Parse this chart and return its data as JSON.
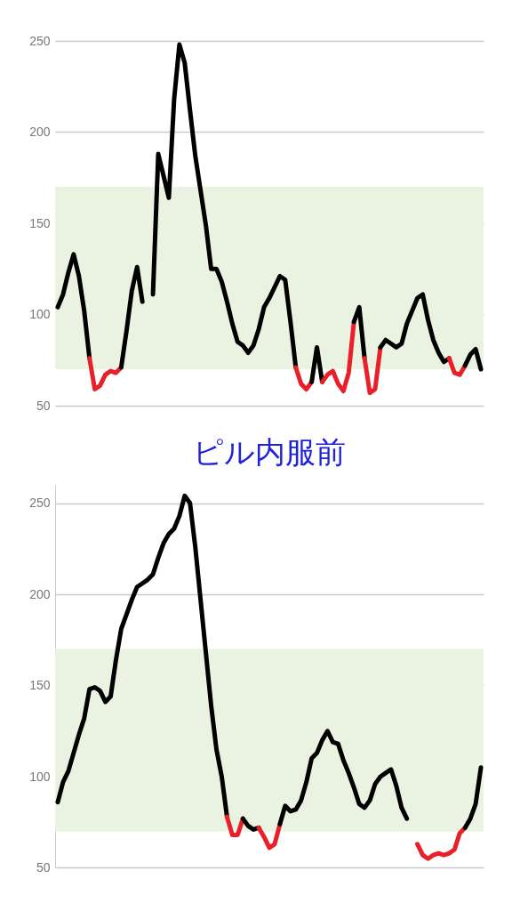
{
  "chart_data": [
    {
      "type": "line",
      "categories": [
        null,
        null,
        null,
        null,
        null,
        null,
        null,
        null,
        null,
        null,
        null,
        null,
        null,
        null,
        null,
        null,
        null,
        null,
        null,
        null,
        null,
        null,
        null,
        null,
        null,
        null,
        null,
        null,
        null,
        null,
        null,
        null,
        null,
        null,
        null,
        null,
        null,
        null,
        null,
        null,
        null,
        null,
        null,
        null,
        null,
        null,
        null,
        null,
        null,
        null,
        null,
        null,
        null,
        null,
        null,
        null,
        null,
        null,
        null,
        null,
        null,
        null,
        null,
        null,
        null,
        null,
        null,
        null,
        null,
        null,
        null,
        null,
        null,
        null,
        null,
        null,
        null,
        null,
        null,
        null,
        null
      ],
      "series": [
        {
          "color": "#000000",
          "values": [
            104,
            111,
            123,
            133,
            121,
            102,
            76,
            null,
            null,
            null,
            null,
            null,
            null,
            null,
            null,
            null,
            null,
            null,
            null,
            null,
            null,
            null,
            null,
            null,
            null,
            null,
            null,
            null,
            null,
            null,
            null,
            null,
            null,
            null,
            null,
            null,
            null,
            null,
            null,
            null,
            null,
            null,
            null,
            null,
            null,
            null,
            null,
            null,
            null,
            null,
            null,
            null,
            null,
            null,
            null,
            null,
            null,
            null,
            null,
            null,
            null,
            null,
            null,
            null,
            null,
            null,
            null,
            null,
            null,
            null,
            null,
            null,
            null,
            null,
            null,
            null,
            null,
            null,
            null,
            null,
            null
          ]
        },
        {
          "color": "#e8202a",
          "values": [
            null,
            null,
            null,
            null,
            null,
            null,
            76,
            59,
            61,
            67,
            69,
            68,
            71,
            null,
            null,
            null,
            null,
            null,
            null,
            null,
            null,
            null,
            null,
            null,
            null,
            null,
            null,
            null,
            null,
            null,
            null,
            null,
            null,
            null,
            null,
            null,
            null,
            null,
            null,
            null,
            null,
            null,
            null,
            null,
            null,
            null,
            null,
            null,
            null,
            null,
            null,
            null,
            null,
            null,
            null,
            null,
            null,
            null,
            null,
            null,
            null,
            null,
            null,
            null,
            null,
            null,
            null,
            null,
            null,
            null,
            null,
            null,
            null,
            null,
            null,
            null,
            null,
            null,
            null,
            null,
            null
          ]
        },
        {
          "color": "#000000",
          "values": [
            null,
            null,
            null,
            null,
            null,
            null,
            null,
            null,
            null,
            null,
            null,
            null,
            71,
            91,
            113,
            126,
            107,
            null,
            null,
            null,
            null,
            null,
            null,
            null,
            null,
            null,
            null,
            null,
            null,
            null,
            null,
            null,
            null,
            null,
            null,
            null,
            null,
            null,
            null,
            null,
            null,
            null,
            null,
            null,
            null,
            null,
            null,
            null,
            null,
            null,
            null,
            null,
            null,
            null,
            null,
            null,
            null,
            null,
            null,
            null,
            null,
            null,
            null,
            null,
            null,
            null,
            null,
            null,
            null,
            null,
            null,
            null,
            null,
            null,
            null,
            null,
            null,
            null,
            null,
            null,
            null
          ]
        },
        {
          "color": "#000000",
          "values": [
            null,
            null,
            null,
            null,
            null,
            null,
            null,
            null,
            null,
            null,
            null,
            null,
            null,
            null,
            null,
            null,
            null,
            null,
            111,
            188,
            176,
            164,
            218,
            248,
            238,
            212,
            187,
            168,
            149,
            125,
            125,
            118,
            107,
            95,
            85,
            83,
            79,
            83,
            92,
            104,
            109,
            115,
            121,
            119,
            96,
            71,
            null,
            null,
            null,
            null,
            null,
            null,
            null,
            null,
            null,
            null,
            null,
            null,
            null,
            null,
            null,
            null,
            null,
            null,
            null,
            null,
            null,
            null,
            null,
            null,
            null,
            null,
            null,
            null,
            null,
            null,
            null,
            null,
            null,
            null,
            null
          ]
        },
        {
          "color": "#e8202a",
          "values": [
            null,
            null,
            null,
            null,
            null,
            null,
            null,
            null,
            null,
            null,
            null,
            null,
            null,
            null,
            null,
            null,
            null,
            null,
            null,
            null,
            null,
            null,
            null,
            null,
            null,
            null,
            null,
            null,
            null,
            null,
            null,
            null,
            null,
            null,
            null,
            null,
            null,
            null,
            null,
            null,
            null,
            null,
            null,
            null,
            null,
            71,
            62,
            59,
            63,
            null,
            null,
            null,
            null,
            null,
            null,
            null,
            null,
            null,
            null,
            null,
            null,
            null,
            null,
            null,
            null,
            null,
            null,
            null,
            null,
            null,
            null,
            null,
            null,
            null,
            null,
            null,
            null,
            null,
            null,
            null,
            null
          ]
        },
        {
          "color": "#000000",
          "values": [
            null,
            null,
            null,
            null,
            null,
            null,
            null,
            null,
            null,
            null,
            null,
            null,
            null,
            null,
            null,
            null,
            null,
            null,
            null,
            null,
            null,
            null,
            null,
            null,
            null,
            null,
            null,
            null,
            null,
            null,
            null,
            null,
            null,
            null,
            null,
            null,
            null,
            null,
            null,
            null,
            null,
            null,
            null,
            null,
            null,
            null,
            null,
            null,
            63,
            82,
            63,
            null,
            null,
            null,
            null,
            null,
            null,
            null,
            null,
            null,
            null,
            null,
            null,
            null,
            null,
            null,
            null,
            null,
            null,
            null,
            null,
            null,
            null,
            null,
            null,
            null,
            null,
            null,
            null,
            null,
            null
          ]
        },
        {
          "color": "#e8202a",
          "values": [
            null,
            null,
            null,
            null,
            null,
            null,
            null,
            null,
            null,
            null,
            null,
            null,
            null,
            null,
            null,
            null,
            null,
            null,
            null,
            null,
            null,
            null,
            null,
            null,
            null,
            null,
            null,
            null,
            null,
            null,
            null,
            null,
            null,
            null,
            null,
            null,
            null,
            null,
            null,
            null,
            null,
            null,
            null,
            null,
            null,
            null,
            null,
            null,
            null,
            null,
            63,
            67,
            69,
            62,
            58,
            68,
            96,
            null,
            null,
            null,
            null,
            null,
            null,
            null,
            null,
            null,
            null,
            null,
            null,
            null,
            null,
            null,
            null,
            null,
            null,
            null,
            null,
            null,
            null,
            null,
            null
          ]
        },
        {
          "color": "#000000",
          "values": [
            null,
            null,
            null,
            null,
            null,
            null,
            null,
            null,
            null,
            null,
            null,
            null,
            null,
            null,
            null,
            null,
            null,
            null,
            null,
            null,
            null,
            null,
            null,
            null,
            null,
            null,
            null,
            null,
            null,
            null,
            null,
            null,
            null,
            null,
            null,
            null,
            null,
            null,
            null,
            null,
            null,
            null,
            null,
            null,
            null,
            null,
            null,
            null,
            null,
            null,
            null,
            null,
            null,
            null,
            null,
            null,
            96,
            104,
            76,
            null,
            null,
            null,
            null,
            null,
            null,
            null,
            null,
            null,
            null,
            null,
            null,
            null,
            null,
            null,
            null,
            null,
            null,
            null,
            null,
            null,
            null
          ]
        },
        {
          "color": "#e8202a",
          "values": [
            null,
            null,
            null,
            null,
            null,
            null,
            null,
            null,
            null,
            null,
            null,
            null,
            null,
            null,
            null,
            null,
            null,
            null,
            null,
            null,
            null,
            null,
            null,
            null,
            null,
            null,
            null,
            null,
            null,
            null,
            null,
            null,
            null,
            null,
            null,
            null,
            null,
            null,
            null,
            null,
            null,
            null,
            null,
            null,
            null,
            null,
            null,
            null,
            null,
            null,
            null,
            null,
            null,
            null,
            null,
            null,
            null,
            null,
            76,
            57,
            59,
            82,
            null,
            null,
            null,
            null,
            null,
            null,
            null,
            null,
            null,
            null,
            null,
            null,
            null,
            null,
            null,
            null,
            null,
            null,
            null
          ]
        },
        {
          "color": "#000000",
          "values": [
            null,
            null,
            null,
            null,
            null,
            null,
            null,
            null,
            null,
            null,
            null,
            null,
            null,
            null,
            null,
            null,
            null,
            null,
            null,
            null,
            null,
            null,
            null,
            null,
            null,
            null,
            null,
            null,
            null,
            null,
            null,
            null,
            null,
            null,
            null,
            null,
            null,
            null,
            null,
            null,
            null,
            null,
            null,
            null,
            null,
            null,
            null,
            null,
            null,
            null,
            null,
            null,
            null,
            null,
            null,
            null,
            null,
            null,
            null,
            null,
            null,
            82,
            86,
            84,
            82,
            84,
            95,
            102,
            109,
            111,
            97,
            86,
            79,
            74,
            76,
            null,
            null,
            null,
            null,
            null,
            null
          ]
        },
        {
          "color": "#e8202a",
          "values": [
            null,
            null,
            null,
            null,
            null,
            null,
            null,
            null,
            null,
            null,
            null,
            null,
            null,
            null,
            null,
            null,
            null,
            null,
            null,
            null,
            null,
            null,
            null,
            null,
            null,
            null,
            null,
            null,
            null,
            null,
            null,
            null,
            null,
            null,
            null,
            null,
            null,
            null,
            null,
            null,
            null,
            null,
            null,
            null,
            null,
            null,
            null,
            null,
            null,
            null,
            null,
            null,
            null,
            null,
            null,
            null,
            null,
            null,
            null,
            null,
            null,
            null,
            null,
            null,
            null,
            null,
            null,
            null,
            null,
            null,
            null,
            null,
            null,
            null,
            76,
            68,
            67,
            72,
            null,
            null,
            null
          ]
        },
        {
          "color": "#000000",
          "values": [
            null,
            null,
            null,
            null,
            null,
            null,
            null,
            null,
            null,
            null,
            null,
            null,
            null,
            null,
            null,
            null,
            null,
            null,
            null,
            null,
            null,
            null,
            null,
            null,
            null,
            null,
            null,
            null,
            null,
            null,
            null,
            null,
            null,
            null,
            null,
            null,
            null,
            null,
            null,
            null,
            null,
            null,
            null,
            null,
            null,
            null,
            null,
            null,
            null,
            null,
            null,
            null,
            null,
            null,
            null,
            null,
            null,
            null,
            null,
            null,
            null,
            null,
            null,
            null,
            null,
            null,
            null,
            null,
            null,
            null,
            null,
            null,
            null,
            null,
            null,
            null,
            null,
            72,
            78,
            81,
            70
          ]
        }
      ],
      "ylim": [
        50,
        250
      ],
      "yticks": [
        50,
        100,
        150,
        200,
        250
      ],
      "grid": "y",
      "tick_labels": "y",
      "line_style": "solid",
      "bands": [
        {
          "axis": "y",
          "from": 70,
          "to": 170,
          "color": "#eaf3e2"
        }
      ]
    },
    {
      "type": "line",
      "title": "ピル内服前",
      "categories": [
        null,
        null,
        null,
        null,
        null,
        null,
        null,
        null,
        null,
        null,
        null,
        null,
        null,
        null,
        null,
        null,
        null,
        null,
        null,
        null,
        null,
        null,
        null,
        null,
        null,
        null,
        null,
        null,
        null,
        null,
        null,
        null,
        null,
        null,
        null,
        null,
        null,
        null,
        null,
        null,
        null,
        null,
        null,
        null,
        null,
        null,
        null,
        null,
        null,
        null,
        null,
        null,
        null,
        null,
        null,
        null,
        null,
        null,
        null,
        null,
        null,
        null,
        null,
        null,
        null,
        null,
        null,
        null,
        null,
        null,
        null,
        null,
        null,
        null,
        null,
        null,
        null,
        null,
        null,
        null,
        null
      ],
      "series": [
        {
          "color": "#000000",
          "values": [
            86,
            97,
            103,
            113,
            123,
            132,
            148,
            149,
            147,
            141,
            144,
            164,
            181,
            189,
            197,
            204,
            206,
            208,
            211,
            220,
            228,
            233,
            236,
            243,
            254,
            250,
            226,
            197,
            168,
            139,
            115,
            100,
            78,
            null,
            null,
            null,
            null,
            null,
            null,
            null,
            null,
            null,
            null,
            null,
            null,
            null,
            null,
            null,
            null,
            null,
            null,
            null,
            null,
            null,
            null,
            null,
            null,
            null,
            null,
            null,
            null,
            null,
            null,
            null,
            null,
            null,
            null,
            null,
            null,
            null,
            null,
            null,
            null,
            null,
            null,
            null,
            null,
            null,
            null,
            null,
            null
          ]
        },
        {
          "color": "#e8202a",
          "values": [
            null,
            null,
            null,
            null,
            null,
            null,
            null,
            null,
            null,
            null,
            null,
            null,
            null,
            null,
            null,
            null,
            null,
            null,
            null,
            null,
            null,
            null,
            null,
            null,
            null,
            null,
            null,
            null,
            null,
            null,
            null,
            null,
            78,
            68,
            68,
            77,
            null,
            null,
            null,
            null,
            null,
            null,
            null,
            null,
            null,
            null,
            null,
            null,
            null,
            null,
            null,
            null,
            null,
            null,
            null,
            null,
            null,
            null,
            null,
            null,
            null,
            null,
            null,
            null,
            null,
            null,
            null,
            null,
            null,
            null,
            null,
            null,
            null,
            null,
            null,
            null,
            null,
            null,
            null,
            null,
            null
          ]
        },
        {
          "color": "#000000",
          "values": [
            null,
            null,
            null,
            null,
            null,
            null,
            null,
            null,
            null,
            null,
            null,
            null,
            null,
            null,
            null,
            null,
            null,
            null,
            null,
            null,
            null,
            null,
            null,
            null,
            null,
            null,
            null,
            null,
            null,
            null,
            null,
            null,
            null,
            null,
            null,
            77,
            73,
            71,
            72,
            null,
            null,
            null,
            null,
            null,
            null,
            null,
            null,
            null,
            null,
            null,
            null,
            null,
            null,
            null,
            null,
            null,
            null,
            null,
            null,
            null,
            null,
            null,
            null,
            null,
            null,
            null,
            null,
            null,
            null,
            null,
            null,
            null,
            null,
            null,
            null,
            null,
            null,
            null,
            null,
            null,
            null
          ]
        },
        {
          "color": "#e8202a",
          "values": [
            null,
            null,
            null,
            null,
            null,
            null,
            null,
            null,
            null,
            null,
            null,
            null,
            null,
            null,
            null,
            null,
            null,
            null,
            null,
            null,
            null,
            null,
            null,
            null,
            null,
            null,
            null,
            null,
            null,
            null,
            null,
            null,
            null,
            null,
            null,
            null,
            null,
            null,
            72,
            67,
            61,
            63,
            74,
            null,
            null,
            null,
            null,
            null,
            null,
            null,
            null,
            null,
            null,
            null,
            null,
            null,
            null,
            null,
            null,
            null,
            null,
            null,
            null,
            null,
            null,
            null,
            null,
            null,
            null,
            null,
            null,
            null,
            null,
            null,
            null,
            null,
            null,
            null,
            null,
            null,
            null
          ]
        },
        {
          "color": "#000000",
          "values": [
            null,
            null,
            null,
            null,
            null,
            null,
            null,
            null,
            null,
            null,
            null,
            null,
            null,
            null,
            null,
            null,
            null,
            null,
            null,
            null,
            null,
            null,
            null,
            null,
            null,
            null,
            null,
            null,
            null,
            null,
            null,
            null,
            null,
            null,
            null,
            null,
            null,
            null,
            null,
            null,
            null,
            null,
            74,
            84,
            81,
            82,
            87,
            97,
            110,
            113,
            120,
            125,
            119,
            118,
            109,
            102,
            94,
            85,
            83,
            87,
            96,
            100,
            102,
            104,
            95,
            83,
            77,
            null,
            null,
            null,
            null,
            null,
            null,
            null,
            null,
            null,
            null,
            null,
            null,
            null,
            null
          ]
        },
        {
          "color": "#e8202a",
          "values": [
            null,
            null,
            null,
            null,
            null,
            null,
            null,
            null,
            null,
            null,
            null,
            null,
            null,
            null,
            null,
            null,
            null,
            null,
            null,
            null,
            null,
            null,
            null,
            null,
            null,
            null,
            null,
            null,
            null,
            null,
            null,
            null,
            null,
            null,
            null,
            null,
            null,
            null,
            null,
            null,
            null,
            null,
            null,
            null,
            null,
            null,
            null,
            null,
            null,
            null,
            null,
            null,
            null,
            null,
            null,
            null,
            null,
            null,
            null,
            null,
            null,
            null,
            null,
            null,
            null,
            null,
            null,
            null,
            63,
            57,
            55,
            57,
            58,
            57,
            58,
            60,
            69,
            72,
            null,
            null,
            null
          ]
        },
        {
          "color": "#000000",
          "values": [
            null,
            null,
            null,
            null,
            null,
            null,
            null,
            null,
            null,
            null,
            null,
            null,
            null,
            null,
            null,
            null,
            null,
            null,
            null,
            null,
            null,
            null,
            null,
            null,
            null,
            null,
            null,
            null,
            null,
            null,
            null,
            null,
            null,
            null,
            null,
            null,
            null,
            null,
            null,
            null,
            null,
            null,
            null,
            null,
            null,
            null,
            null,
            null,
            null,
            null,
            null,
            null,
            null,
            null,
            null,
            null,
            null,
            null,
            null,
            null,
            null,
            null,
            null,
            null,
            null,
            null,
            null,
            null,
            null,
            null,
            null,
            null,
            null,
            null,
            null,
            null,
            null,
            72,
            77,
            85,
            105
          ]
        }
      ],
      "ylim": [
        50,
        260
      ],
      "yticks": [
        50,
        100,
        150,
        200,
        250
      ],
      "grid": "y",
      "tick_labels": "y",
      "line_style": "solid",
      "bands": [
        {
          "axis": "y",
          "from": 70,
          "to": 170,
          "color": "#eaf3e2"
        }
      ]
    }
  ]
}
